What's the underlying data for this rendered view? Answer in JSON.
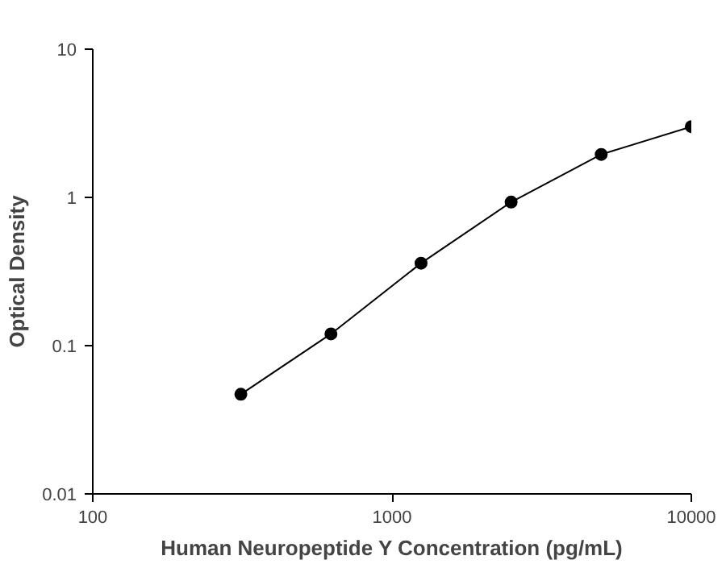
{
  "chart_data": {
    "type": "line",
    "log": "xy",
    "xlabel": "Human Neuropeptide Y Concentration (pg/mL)",
    "ylabel": "Optical Density",
    "x": [
      312.5,
      625,
      1250,
      2500,
      5000,
      10000
    ],
    "series": [
      {
        "color": "#000000",
        "values": [
          0.047,
          0.12,
          0.36,
          0.93,
          1.95,
          3.0
        ]
      }
    ],
    "xlim": [
      100,
      10000
    ],
    "ylim": [
      0.01,
      10
    ],
    "xticks": [
      100,
      1000,
      10000
    ],
    "yticks": [
      0.01,
      0.1,
      1,
      10
    ],
    "marker": "circle",
    "line_style": "solid",
    "grid": false
  }
}
